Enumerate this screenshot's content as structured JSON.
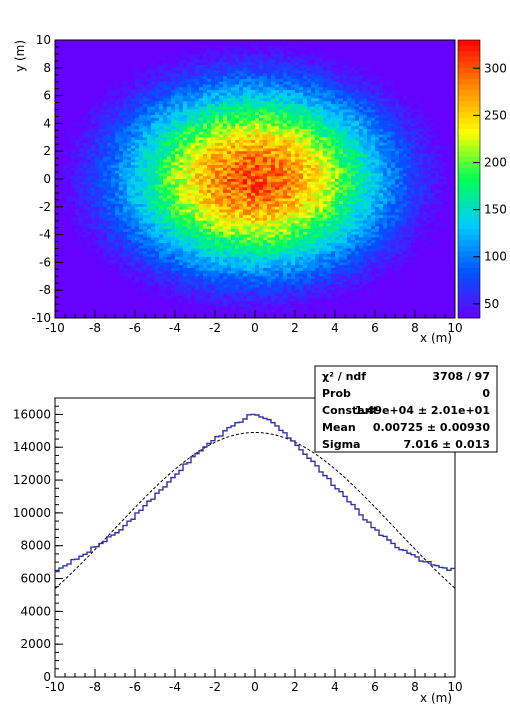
{
  "chart_data": [
    {
      "type": "heatmap",
      "title": "",
      "xlabel": "x (m)",
      "ylabel": "y (m)",
      "xlim": [
        -10,
        10
      ],
      "ylim": [
        -10,
        10
      ],
      "bins": [
        100,
        100
      ],
      "x_ticks": [
        "-10",
        "-8",
        "-6",
        "-4",
        "-2",
        "0",
        "2",
        "4",
        "6",
        "8",
        "10"
      ],
      "y_ticks": [
        "-10",
        "-8",
        "-6",
        "-4",
        "-2",
        "0",
        "2",
        "4",
        "6",
        "8",
        "10"
      ],
      "distribution": {
        "form": "2D gaussian",
        "mean_x": 0,
        "mean_y": 0,
        "sigma_x": 7.0,
        "sigma_y": 7.0,
        "peak": 300
      },
      "colorbar": {
        "range": [
          35,
          330
        ],
        "ticks": [
          "50",
          "100",
          "150",
          "200",
          "250",
          "300"
        ],
        "palette": [
          "#ff0000",
          "#ff8800",
          "#ffff00",
          "#00ff55",
          "#00ccff",
          "#0055ff",
          "#6600ff"
        ]
      }
    },
    {
      "type": "line",
      "title": "",
      "xlabel": "x (m)",
      "ylabel": "",
      "xlim": [
        -10,
        10
      ],
      "ylim": [
        0,
        17000
      ],
      "x_ticks": [
        "-10",
        "-8",
        "-6",
        "-4",
        "-2",
        "0",
        "2",
        "4",
        "6",
        "8",
        "10"
      ],
      "y_ticks": [
        "0",
        "2000",
        "4000",
        "6000",
        "8000",
        "10000",
        "12000",
        "14000",
        "16000"
      ],
      "series": [
        {
          "style": "histogram-step",
          "color": "#3232a0",
          "x": [
            -10,
            -9,
            -8,
            -7,
            -6,
            -5,
            -4,
            -3,
            -2,
            -1,
            0,
            1,
            2,
            3,
            4,
            5,
            6,
            7,
            8,
            9,
            10
          ],
          "values": [
            6400,
            7200,
            7900,
            8700,
            9800,
            11000,
            12300,
            13500,
            14500,
            15400,
            16100,
            15400,
            14300,
            13000,
            11600,
            10300,
            9000,
            8000,
            7300,
            6800,
            6500
          ]
        },
        {
          "style": "fit-dashed",
          "color": "#000000",
          "fit": {
            "form": "gaussian",
            "constant": 14900,
            "mean": 0.00725,
            "sigma": 7.016
          }
        }
      ],
      "stats_box": [
        {
          "name": "χ² / ndf",
          "value": "3708 / 97"
        },
        {
          "name": "Prob",
          "value": "0"
        },
        {
          "name": "Constant",
          "value": "1.49e+04 ± 2.01e+01"
        },
        {
          "name": "Mean",
          "value": "0.00725 ± 0.00930"
        },
        {
          "name": "Sigma",
          "value": "7.016 ± 0.013"
        }
      ]
    }
  ]
}
